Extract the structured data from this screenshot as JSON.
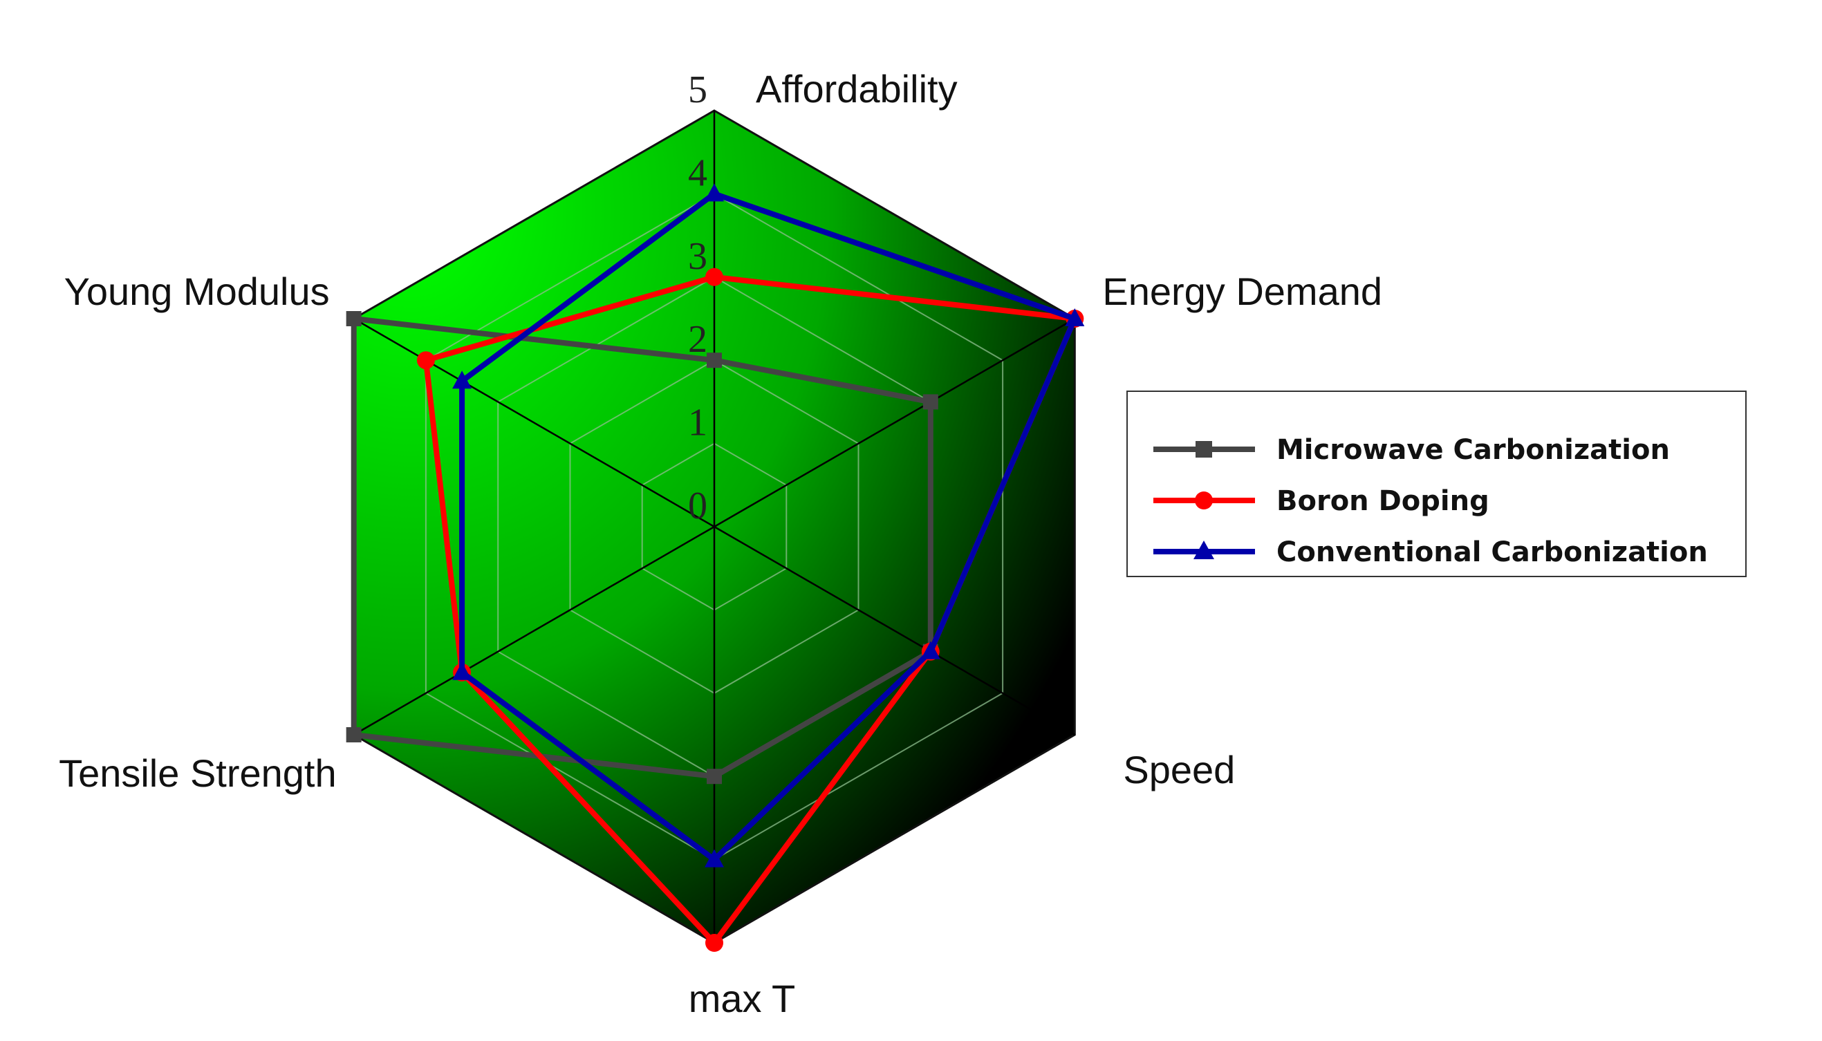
{
  "chart_data": {
    "type": "radar",
    "axes": [
      "Affordability",
      "Energy Demand",
      "Speed",
      "max T",
      "Tensile Strength",
      "Young Modulus"
    ],
    "rlim": [
      0,
      5
    ],
    "ticks": [
      "0",
      "1",
      "2",
      "3",
      "4",
      "5"
    ],
    "grid": true,
    "legend_position": "right",
    "series": [
      {
        "name": "Microwave Carbonization",
        "values": [
          2,
          3,
          3,
          3,
          5,
          5
        ],
        "color": "#444444",
        "marker": "square"
      },
      {
        "name": "Boron Doping",
        "values": [
          3,
          5,
          3,
          5,
          3.5,
          4
        ],
        "color": "#ff0000",
        "marker": "circle"
      },
      {
        "name": "Conventional Carbonization",
        "values": [
          4,
          5,
          3,
          4,
          3.5,
          3.5
        ],
        "color": "#0000aa",
        "marker": "triangle"
      }
    ],
    "colors": {
      "fill_light": "#00ff00",
      "fill_dark": "#000000"
    }
  }
}
